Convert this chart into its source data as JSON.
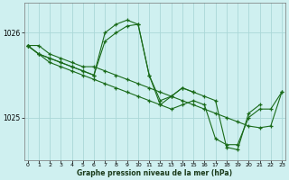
{
  "title": "Graphe pression niveau de la mer (hPa)",
  "bg_color": "#cff0f0",
  "grid_color": "#aad8d8",
  "line_color": "#1a6b1a",
  "ylim": [
    1024.5,
    1026.35
  ],
  "xlim": [
    -0.3,
    23.3
  ],
  "yticks": [
    1025,
    1026
  ],
  "xticks": [
    0,
    1,
    2,
    3,
    4,
    5,
    6,
    7,
    8,
    9,
    10,
    11,
    12,
    13,
    14,
    15,
    16,
    17,
    18,
    19,
    20,
    21,
    22,
    23
  ],
  "series": [
    [
      0,
      1025.85
    ],
    [
      1,
      1025.85
    ],
    [
      2,
      1025.75
    ],
    [
      3,
      1025.7
    ],
    [
      4,
      1025.65
    ],
    [
      5,
      1025.6
    ],
    [
      6,
      1025.6
    ],
    [
      7,
      1025.55
    ],
    [
      8,
      1025.5
    ],
    [
      9,
      1025.45
    ],
    [
      10,
      1025.4
    ],
    [
      11,
      1025.35
    ],
    [
      12,
      1025.3
    ],
    [
      13,
      1025.25
    ],
    [
      14,
      1025.2
    ],
    [
      15,
      1025.15
    ],
    [
      16,
      1025.1
    ],
    [
      17,
      1025.05
    ],
    [
      18,
      1025.0
    ],
    [
      19,
      1024.95
    ],
    [
      20,
      1024.9
    ],
    [
      21,
      1024.88
    ],
    [
      22,
      1024.9
    ],
    [
      23,
      1025.3
    ]
  ],
  "line1": [
    1025.85,
    1025.85,
    1025.75,
    1025.7,
    1025.65,
    1025.6,
    1025.6,
    1025.55,
    1025.5,
    1025.45,
    1025.4,
    1025.35,
    1025.3,
    1025.25,
    1025.2,
    1025.15,
    1025.1,
    1025.05,
    1025.0,
    1024.95,
    1024.9,
    1024.88,
    1024.9,
    1025.3
  ],
  "line2": [
    1025.85,
    1025.75,
    1025.7,
    1025.65,
    1025.6,
    1025.55,
    1025.5,
    1025.9,
    1026.0,
    1026.08,
    1026.1,
    1025.5,
    1025.2,
    1025.25,
    1025.35,
    1025.3,
    1025.25,
    1025.2,
    1024.65,
    1024.62,
    1025.05,
    1025.15,
    null,
    null
  ],
  "line3": [
    1025.85,
    1025.75,
    1025.7,
    1025.65,
    1025.6,
    1025.55,
    1025.5,
    1026.0,
    1026.1,
    1026.15,
    1026.1,
    1025.5,
    1025.15,
    1025.25,
    1025.35,
    1025.3,
    null,
    null,
    null,
    null,
    null,
    null,
    null,
    null
  ],
  "line4": [
    1025.85,
    1025.75,
    1025.65,
    1025.6,
    1025.55,
    1025.5,
    1025.45,
    1025.4,
    1025.35,
    1025.3,
    1025.25,
    1025.2,
    1025.15,
    1025.1,
    1025.15,
    1025.2,
    1025.15,
    1024.75,
    1024.68,
    1024.68,
    1025.0,
    1025.1,
    1025.1,
    1025.3
  ]
}
